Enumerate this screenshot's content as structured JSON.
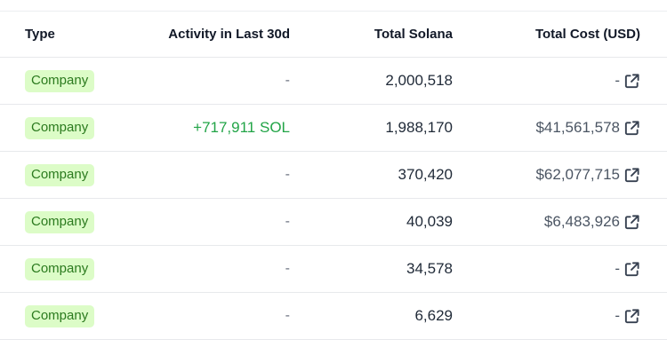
{
  "table": {
    "headers": {
      "type": "Type",
      "activity": "Activity in Last 30d",
      "solana": "Total Solana",
      "cost": "Total Cost (USD)"
    },
    "rows": [
      {
        "type": "Company",
        "activity": "-",
        "solana": "2,000,518",
        "cost": "-"
      },
      {
        "type": "Company",
        "activity": "+717,911 SOL",
        "solana": "1,988,170",
        "cost": "$41,561,578"
      },
      {
        "type": "Company",
        "activity": "-",
        "solana": "370,420",
        "cost": "$62,077,715"
      },
      {
        "type": "Company",
        "activity": "-",
        "solana": "40,039",
        "cost": "$6,483,926"
      },
      {
        "type": "Company",
        "activity": "-",
        "solana": "34,578",
        "cost": "-"
      },
      {
        "type": "Company",
        "activity": "-",
        "solana": "6,629",
        "cost": "-"
      }
    ]
  },
  "colors": {
    "badge_bg": "#dcfcc7",
    "badge_text": "#2b7a1e",
    "gain": "#22a447"
  },
  "icons": {
    "external": "external-link-icon"
  }
}
